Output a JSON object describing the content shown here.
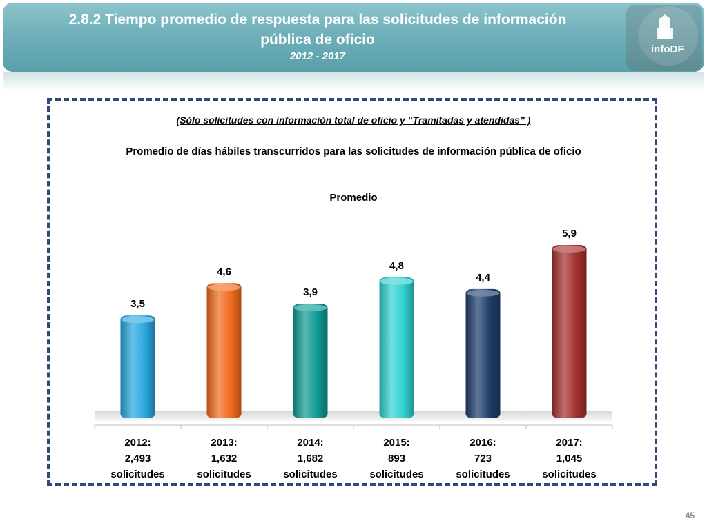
{
  "header": {
    "title_line1": "2.8.2 Tiempo promedio de respuesta para las solicitudes de información",
    "title_line2": "pública de oficio",
    "years": "2012 - 2017",
    "logo_text": "infoDF"
  },
  "page_number": "45",
  "colors": {
    "header": "#6fb0ba",
    "frame": "#2f4a78"
  },
  "chart_data": {
    "type": "bar",
    "subtitle": "(Sólo solicitudes con información total de oficio y “Tramitadas y atendidas” )",
    "title": "Promedio de días hábiles transcurridos para las solicitudes de información pública de oficio",
    "series": [
      {
        "name": "Promedio",
        "values": [
          3.5,
          4.6,
          3.9,
          4.8,
          4.4,
          5.9
        ],
        "labels": [
          "3,5",
          "4,6",
          "3,9",
          "4,8",
          "4,4",
          "5,9"
        ]
      }
    ],
    "categories": [
      [
        "2012:",
        "2,493",
        "solicitudes"
      ],
      [
        "2013:",
        "1,632",
        "solicitudes"
      ],
      [
        "2014:",
        "1,682",
        "solicitudes"
      ],
      [
        "2015:",
        "893",
        "solicitudes"
      ],
      [
        "2016:",
        "723",
        "solicitudes"
      ],
      [
        "2017:",
        "1,045",
        "solicitudes"
      ]
    ],
    "bar_colors": [
      "#29a8e0",
      "#f26b1d",
      "#0f9b94",
      "#33d1d1",
      "#1f3d6b",
      "#a3302f"
    ],
    "ylim": [
      0,
      6.5
    ],
    "grid": false,
    "legend": "none"
  }
}
